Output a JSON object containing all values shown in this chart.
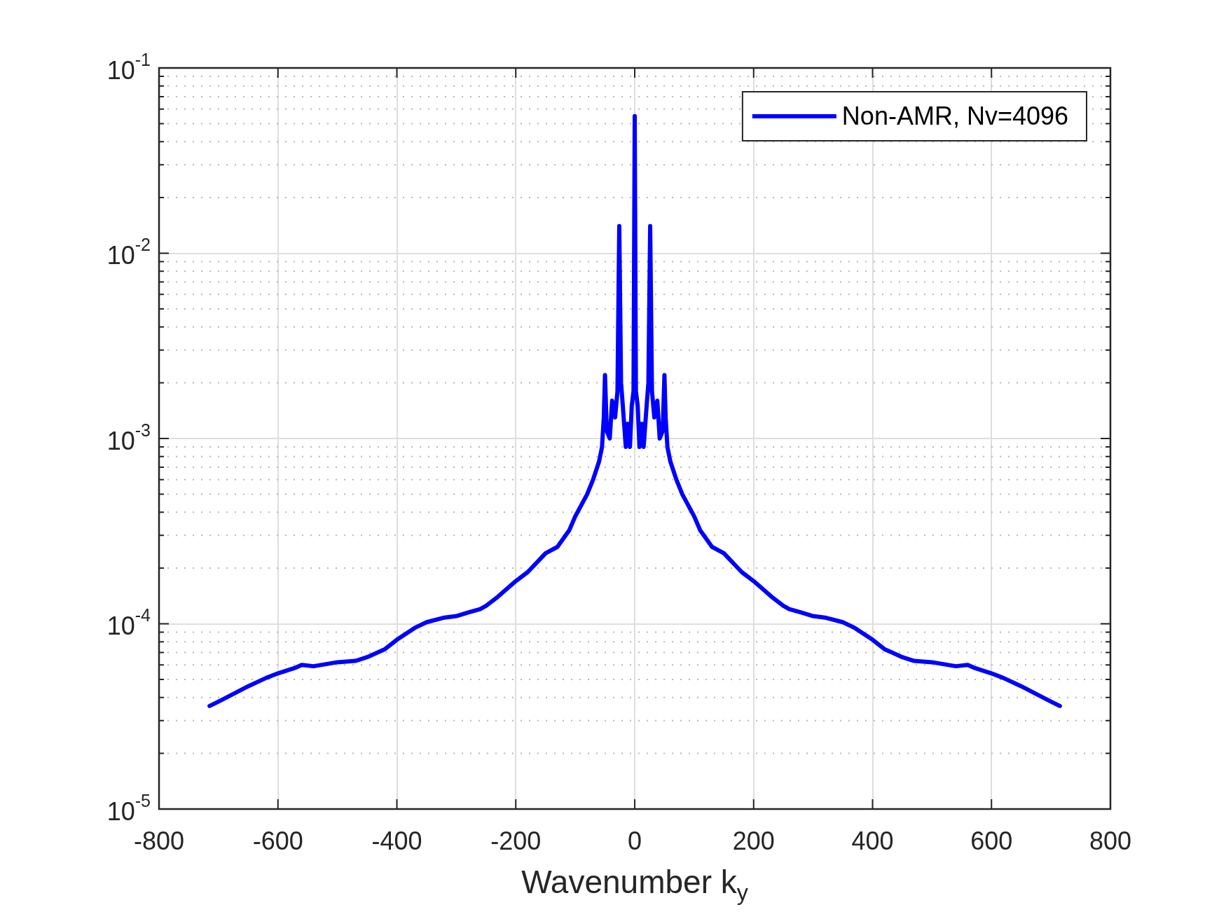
{
  "chart_data": {
    "type": "line",
    "xlabel": "Wavenumber k$_{y}$",
    "x": [
      -715,
      -700,
      -680,
      -650,
      -620,
      -600,
      -570,
      -560,
      -540,
      -500,
      -470,
      -450,
      -420,
      -400,
      -370,
      -350,
      -320,
      -300,
      -280,
      -260,
      -250,
      -230,
      -200,
      -180,
      -150,
      -130,
      -110,
      -100,
      -80,
      -70,
      -60,
      -55,
      -52,
      -50,
      -47,
      -42,
      -38,
      -33,
      -29,
      -26,
      -23,
      -20,
      -15,
      -12,
      -8,
      -5,
      -2,
      0,
      2,
      5,
      8,
      12,
      15,
      20,
      23,
      26,
      29,
      33,
      38,
      42,
      47,
      50,
      52,
      55,
      60,
      70,
      80,
      100,
      110,
      130,
      150,
      180,
      200,
      230,
      250,
      260,
      280,
      300,
      320,
      350,
      370,
      400,
      420,
      450,
      470,
      500,
      540,
      560,
      570,
      600,
      620,
      650,
      680,
      700,
      715
    ],
    "series": [
      {
        "name": "Non-AMR, Nv=4096",
        "color": "#0000ff",
        "values": [
          3.6e-05,
          3.8e-05,
          4.1e-05,
          4.6e-05,
          5.1e-05,
          5.4e-05,
          5.8e-05,
          6e-05,
          5.9e-05,
          6.2e-05,
          6.3e-05,
          6.6e-05,
          7.3e-05,
          8.2e-05,
          9.5e-05,
          0.000102,
          0.000108,
          0.00011,
          0.000115,
          0.00012,
          0.000125,
          0.00014,
          0.00017,
          0.00019,
          0.00024,
          0.00026,
          0.00032,
          0.00038,
          0.0005,
          0.0006,
          0.00075,
          0.0009,
          0.0013,
          0.0022,
          0.0011,
          0.001,
          0.0016,
          0.0013,
          0.0018,
          0.014,
          0.002,
          0.0015,
          0.0009,
          0.0012,
          0.0009,
          0.0015,
          0.0018,
          0.055,
          0.0018,
          0.0015,
          0.0009,
          0.0012,
          0.0009,
          0.0015,
          0.002,
          0.014,
          0.0018,
          0.0013,
          0.0016,
          0.001,
          0.0011,
          0.0022,
          0.0013,
          0.0009,
          0.00075,
          0.0006,
          0.0005,
          0.00038,
          0.00032,
          0.00026,
          0.00024,
          0.00019,
          0.00017,
          0.00014,
          0.000125,
          0.00012,
          0.000115,
          0.00011,
          0.000108,
          0.000102,
          9.5e-05,
          8.2e-05,
          7.3e-05,
          6.6e-05,
          6.3e-05,
          6.2e-05,
          5.9e-05,
          6e-05,
          5.8e-05,
          5.4e-05,
          5.1e-05,
          4.6e-05,
          4.1e-05,
          3.8e-05,
          3.6e-05
        ]
      }
    ],
    "xlim": [
      -800,
      800
    ],
    "xticks": [
      -800,
      -600,
      -400,
      -200,
      0,
      200,
      400,
      600,
      800
    ],
    "ylim": [
      1e-05,
      0.1
    ],
    "yticks": [
      {
        "value": 1e-05,
        "label": "10$^{-5}$"
      },
      {
        "value": 0.0001,
        "label": "10$^{-4}$"
      },
      {
        "value": 0.001,
        "label": "10$^{-3}$"
      },
      {
        "value": 0.01,
        "label": "10$^{-2}$"
      },
      {
        "value": 0.1,
        "label": "10$^{-1}$"
      }
    ],
    "log": "y",
    "grid": true,
    "legend": "top right",
    "marker": "none",
    "line_style": "solid"
  }
}
